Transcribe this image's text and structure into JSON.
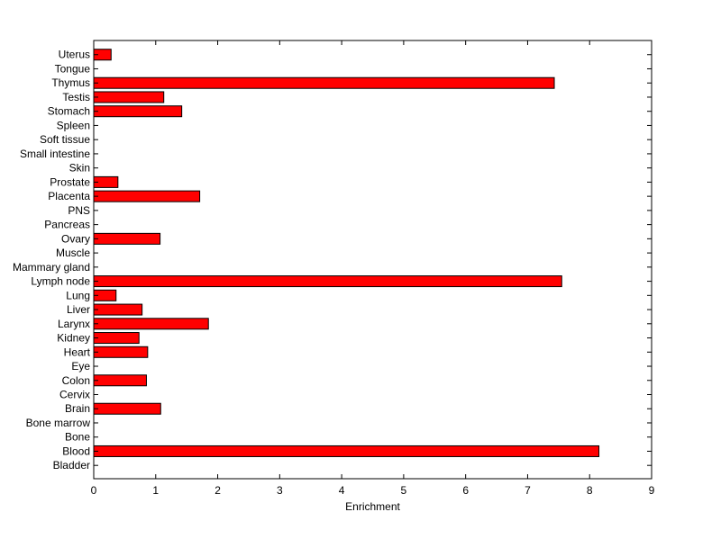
{
  "chart_data": {
    "type": "bar",
    "orientation": "horizontal",
    "categories": [
      "Bladder",
      "Blood",
      "Bone",
      "Bone marrow",
      "Brain",
      "Cervix",
      "Colon",
      "Eye",
      "Heart",
      "Kidney",
      "Larynx",
      "Liver",
      "Lung",
      "Lymph node",
      "Mammary gland",
      "Muscle",
      "Ovary",
      "Pancreas",
      "PNS",
      "Placenta",
      "Prostate",
      "Skin",
      "Small intestine",
      "Soft tissue",
      "Spleen",
      "Stomach",
      "Testis",
      "Thymus",
      "Tongue",
      "Uterus"
    ],
    "values": [
      0,
      8.15,
      0,
      0,
      1.08,
      0,
      0.85,
      0,
      0.87,
      0.73,
      1.85,
      0.78,
      0.36,
      7.55,
      0,
      0,
      1.07,
      0,
      0,
      1.71,
      0.39,
      0,
      0,
      0,
      0,
      1.42,
      1.13,
      7.43,
      0,
      0.28
    ],
    "xlabel": "Enrichment",
    "ylabel": "",
    "title": "",
    "xlim": [
      0,
      9
    ],
    "xticks": [
      "0",
      "1",
      "2",
      "3",
      "4",
      "5",
      "6",
      "7",
      "8",
      "9"
    ],
    "grid": false,
    "bar_color": "#ff0000",
    "bar_edge_color": "#000000"
  }
}
